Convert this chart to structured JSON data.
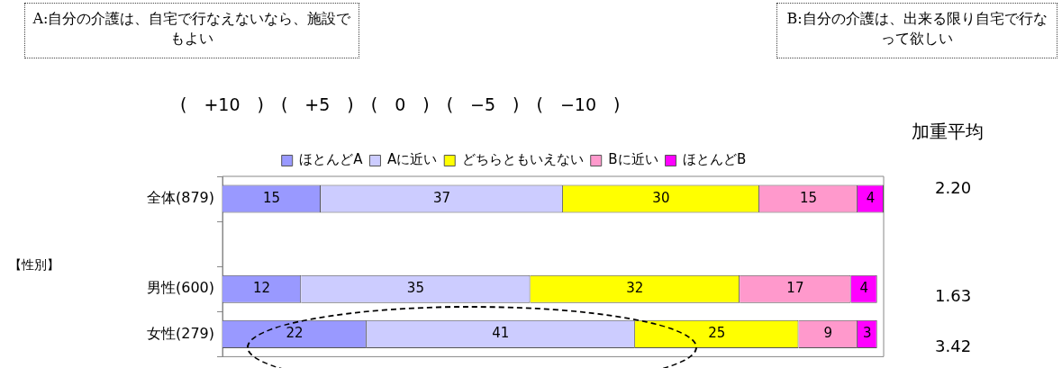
{
  "chart_data": {
    "type": "bar",
    "orientation": "horizontal",
    "stacked": true,
    "categories": [
      "全体(879)",
      null,
      "男性(600)",
      "女性(279)"
    ],
    "series": [
      {
        "name": "ほとんどA",
        "color": "#9999ff",
        "values": [
          15,
          null,
          12,
          22
        ]
      },
      {
        "name": "Aに近い",
        "color": "#ccccff",
        "values": [
          37,
          null,
          35,
          41
        ]
      },
      {
        "name": "どちらともいえない",
        "color": "#ffff00",
        "values": [
          30,
          null,
          32,
          25
        ]
      },
      {
        "name": "Bに近い",
        "color": "#ff99cc",
        "values": [
          15,
          null,
          17,
          9
        ]
      },
      {
        "name": "ほとんどB",
        "color": "#ff00ff",
        "values": [
          4,
          null,
          4,
          3
        ]
      }
    ],
    "xlim": [
      0,
      101
    ],
    "tick_labels": "y",
    "grid": false,
    "legend": "top",
    "data_labels": true,
    "annotations": [
      "A:自分の介護は、自宅で行なえないなら、施設でもよい",
      "B:自分の介護は、出来る限り自宅で行なって欲しい",
      "(　+10　)　(　+5　)　(　0　)　(　−5　)　(　−10　)",
      "加重平均",
      "2.20",
      "1.63",
      "3.42",
      "【性別】"
    ]
  }
}
